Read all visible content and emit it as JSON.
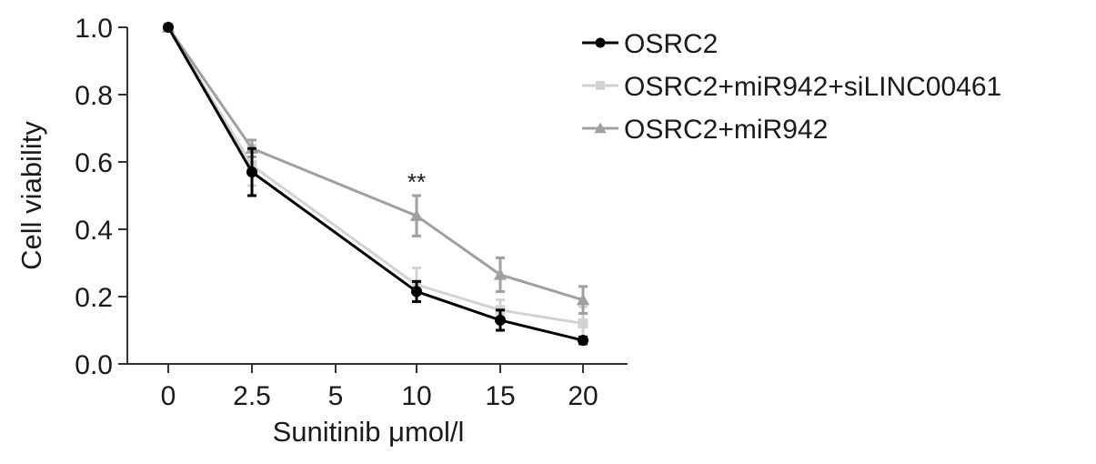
{
  "chart_data": {
    "type": "line",
    "title": "",
    "xlabel": "Sunitinib μmol/l",
    "ylabel": "Cell viability",
    "x": [
      0,
      2.5,
      5,
      10,
      15,
      20
    ],
    "x_tick_labels": [
      "0",
      "2.5",
      "5",
      "10",
      "15",
      "20"
    ],
    "y_ticks": [
      0.0,
      0.2,
      0.4,
      0.6,
      0.8,
      1.0
    ],
    "y_tick_labels": [
      "0.0",
      "0.2",
      "0.4",
      "0.6",
      "0.8",
      "1.0"
    ],
    "ylim": [
      0,
      1.0
    ],
    "x_scale": "categorical (evenly spaced doses 0, 2.5, 5, 10, 15, 20)",
    "grid": false,
    "legend_position": "top-right, outside plot",
    "series": [
      {
        "name": "OSRC2",
        "color": "#000000",
        "marker": "circle",
        "points": [
          {
            "x": 0,
            "y": 1.0,
            "err": 0.005
          },
          {
            "x": 2.5,
            "y": 0.57,
            "err": 0.07
          },
          {
            "x": 10,
            "y": 0.215,
            "err": 0.03
          },
          {
            "x": 15,
            "y": 0.13,
            "err": 0.03
          },
          {
            "x": 20,
            "y": 0.07,
            "err": 0.01
          }
        ]
      },
      {
        "name": "OSRC2+miR942+siLINC00461",
        "color": "#d2d2d2",
        "marker": "square",
        "points": [
          {
            "x": 0,
            "y": 1.0,
            "err": 0.005
          },
          {
            "x": 2.5,
            "y": 0.59,
            "err": 0.06
          },
          {
            "x": 10,
            "y": 0.235,
            "err": 0.05
          },
          {
            "x": 15,
            "y": 0.16,
            "err": 0.03
          },
          {
            "x": 20,
            "y": 0.12,
            "err": 0.05
          }
        ]
      },
      {
        "name": "OSRC2+miR942",
        "color": "#a0a0a0",
        "marker": "triangle",
        "points": [
          {
            "x": 0,
            "y": 1.0,
            "err": 0.005
          },
          {
            "x": 2.5,
            "y": 0.64,
            "err": 0.025
          },
          {
            "x": 10,
            "y": 0.44,
            "err": 0.06
          },
          {
            "x": 15,
            "y": 0.265,
            "err": 0.05
          },
          {
            "x": 20,
            "y": 0.19,
            "err": 0.04
          }
        ]
      }
    ],
    "annotations": [
      {
        "text": "**",
        "x": 10,
        "y": 0.5
      }
    ]
  }
}
